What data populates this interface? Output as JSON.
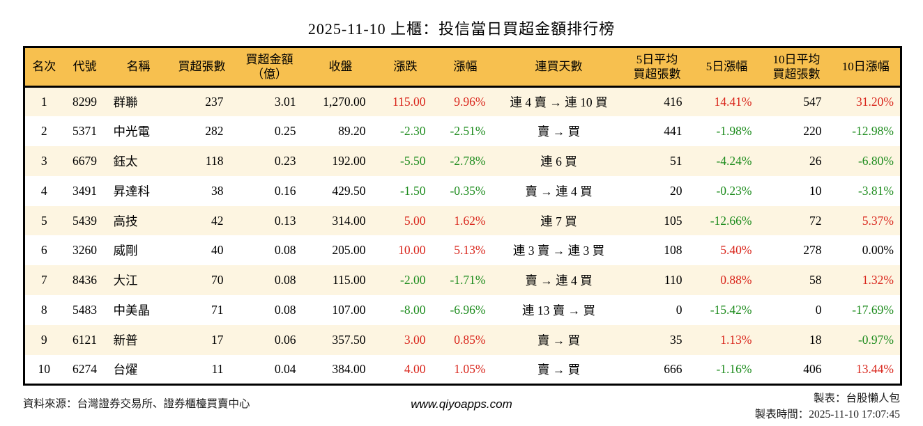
{
  "title": "2025-11-10 上櫃：投信當日買超金額排行榜",
  "colors": {
    "header_bg": "#F7C04F",
    "row_odd_bg": "#FDF5E1",
    "row_even_bg": "#FFFFFF",
    "up_red": "#D9261C",
    "down_green": "#1E8C1E",
    "border": "#000000"
  },
  "chart_data": {
    "type": "table",
    "title": "2025-11-10 上櫃：投信當日買超金額排行榜",
    "columns": [
      "名次",
      "代號",
      "名稱",
      "買超張數",
      "買超金額\n（億）",
      "收盤",
      "漲跌",
      "漲幅",
      "連買天數",
      "5日平均\n買超張數",
      "5日漲幅",
      "10日平均\n買超張數",
      "10日漲幅"
    ],
    "rows": [
      [
        "1",
        "8299",
        "群聯",
        "237",
        "3.01",
        "1,270.00",
        {
          "t": "115.00",
          "c": "red"
        },
        {
          "t": "9.96%",
          "c": "red"
        },
        "連 4 賣 → 連 10 買",
        "416",
        {
          "t": "14.41%",
          "c": "red"
        },
        "547",
        {
          "t": "31.20%",
          "c": "red"
        }
      ],
      [
        "2",
        "5371",
        "中光電",
        "282",
        "0.25",
        "89.20",
        {
          "t": "-2.30",
          "c": "green"
        },
        {
          "t": "-2.51%",
          "c": "green"
        },
        "賣 → 買",
        "441",
        {
          "t": "-1.98%",
          "c": "green"
        },
        "220",
        {
          "t": "-12.98%",
          "c": "green"
        }
      ],
      [
        "3",
        "6679",
        "鈺太",
        "118",
        "0.23",
        "192.00",
        {
          "t": "-5.50",
          "c": "green"
        },
        {
          "t": "-2.78%",
          "c": "green"
        },
        "連 6 買",
        "51",
        {
          "t": "-4.24%",
          "c": "green"
        },
        "26",
        {
          "t": "-6.80%",
          "c": "green"
        }
      ],
      [
        "4",
        "3491",
        "昇達科",
        "38",
        "0.16",
        "429.50",
        {
          "t": "-1.50",
          "c": "green"
        },
        {
          "t": "-0.35%",
          "c": "green"
        },
        "賣 → 連 4 買",
        "20",
        {
          "t": "-0.23%",
          "c": "green"
        },
        "10",
        {
          "t": "-3.81%",
          "c": "green"
        }
      ],
      [
        "5",
        "5439",
        "高技",
        "42",
        "0.13",
        "314.00",
        {
          "t": "5.00",
          "c": "red"
        },
        {
          "t": "1.62%",
          "c": "red"
        },
        "連 7 買",
        "105",
        {
          "t": "-12.66%",
          "c": "green"
        },
        "72",
        {
          "t": "5.37%",
          "c": "red"
        }
      ],
      [
        "6",
        "3260",
        "威剛",
        "40",
        "0.08",
        "205.00",
        {
          "t": "10.00",
          "c": "red"
        },
        {
          "t": "5.13%",
          "c": "red"
        },
        "連 3 賣 → 連 3 買",
        "108",
        {
          "t": "5.40%",
          "c": "red"
        },
        "278",
        {
          "t": "0.00%",
          "c": "black"
        }
      ],
      [
        "7",
        "8436",
        "大江",
        "70",
        "0.08",
        "115.00",
        {
          "t": "-2.00",
          "c": "green"
        },
        {
          "t": "-1.71%",
          "c": "green"
        },
        "賣 → 連 4 買",
        "110",
        {
          "t": "0.88%",
          "c": "red"
        },
        "58",
        {
          "t": "1.32%",
          "c": "red"
        }
      ],
      [
        "8",
        "5483",
        "中美晶",
        "71",
        "0.08",
        "107.00",
        {
          "t": "-8.00",
          "c": "green"
        },
        {
          "t": "-6.96%",
          "c": "green"
        },
        "連 13 賣 → 買",
        "0",
        {
          "t": "-15.42%",
          "c": "green"
        },
        "0",
        {
          "t": "-17.69%",
          "c": "green"
        }
      ],
      [
        "9",
        "6121",
        "新普",
        "17",
        "0.06",
        "357.50",
        {
          "t": "3.00",
          "c": "red"
        },
        {
          "t": "0.85%",
          "c": "red"
        },
        "賣 → 買",
        "35",
        {
          "t": "1.13%",
          "c": "red"
        },
        "18",
        {
          "t": "-0.97%",
          "c": "green"
        }
      ],
      [
        "10",
        "6274",
        "台燿",
        "11",
        "0.04",
        "384.00",
        {
          "t": "4.00",
          "c": "red"
        },
        {
          "t": "1.05%",
          "c": "red"
        },
        "賣 → 買",
        "666",
        {
          "t": "-1.16%",
          "c": "green"
        },
        "406",
        {
          "t": "13.44%",
          "c": "red"
        }
      ]
    ]
  },
  "footer": {
    "source": "資料來源：台灣證券交易所、證券櫃檯買賣中心",
    "website": "www.qiyoapps.com",
    "maker": "製表：台股懶人包",
    "made_time": "製表時間：2025-11-10 17:07:45"
  }
}
